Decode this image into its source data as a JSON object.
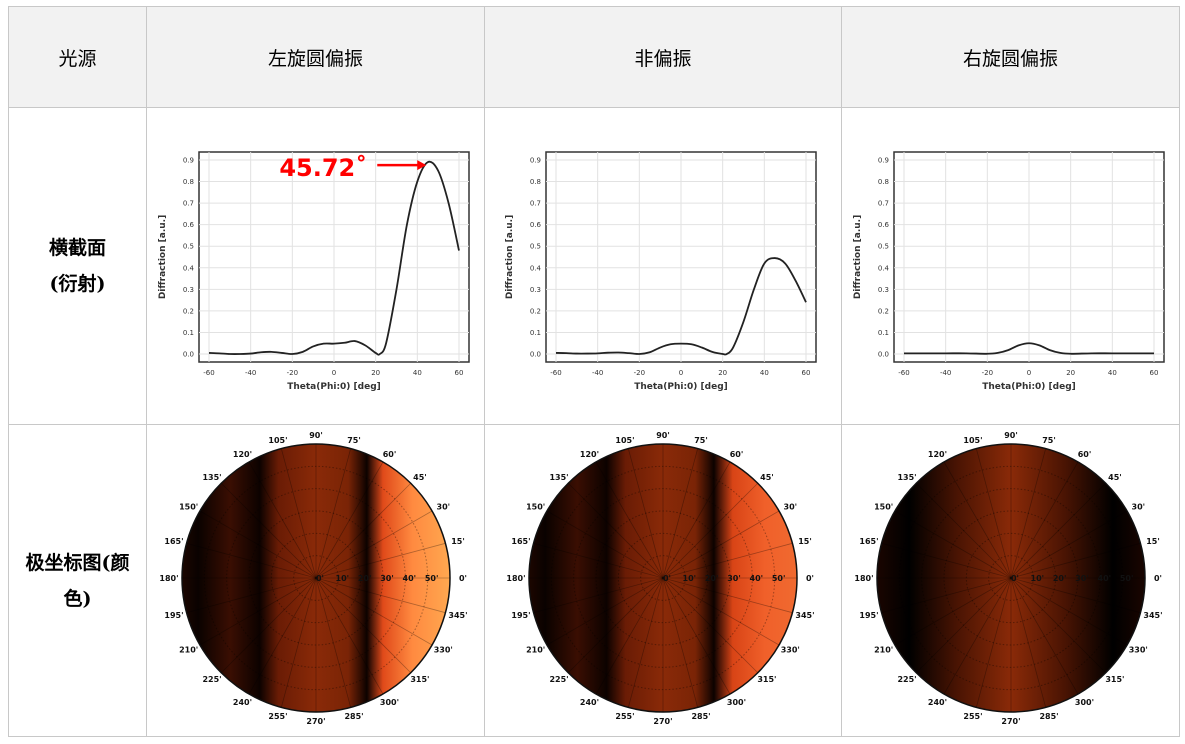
{
  "table": {
    "header": [
      "光源",
      "左旋圆偏振",
      "非偏振",
      "右旋圆偏振"
    ],
    "row_labels": {
      "profile_line1": "横截面",
      "profile_line2": "(衍射)",
      "polar_line1": "极坐标图(颜",
      "polar_line2": "色)"
    }
  },
  "chart_data": [
    {
      "type": "line",
      "column": "左旋圆偏振",
      "xlabel": "Theta(Phi:0) [deg]",
      "ylabel": "Diffraction [a.u.]",
      "xlim": [
        -60,
        60
      ],
      "ylim": [
        0,
        0.9
      ],
      "xticks": [
        -60,
        -40,
        -20,
        0,
        20,
        40,
        60
      ],
      "yticks": [
        0,
        0.1,
        0.2,
        0.3,
        0.4,
        0.5,
        0.6,
        0.7,
        0.8,
        0.9
      ],
      "grid": true,
      "annotation": {
        "text": "45.72˚",
        "x": 45.72,
        "y": 0.89,
        "color": "#ff0000"
      },
      "x": [
        -60,
        -55,
        -50,
        -45,
        -40,
        -35,
        -30,
        -25,
        -20,
        -15,
        -10,
        -5,
        0,
        5,
        10,
        15,
        20,
        22,
        25,
        30,
        35,
        40,
        45,
        50,
        55,
        60
      ],
      "y": [
        0.005,
        0.003,
        0,
        0,
        0.002,
        0.008,
        0.01,
        0.005,
        0,
        0.01,
        0.035,
        0.048,
        0.048,
        0.052,
        0.06,
        0.04,
        0.005,
        0,
        0.05,
        0.3,
        0.6,
        0.8,
        0.89,
        0.85,
        0.7,
        0.48
      ]
    },
    {
      "type": "line",
      "column": "非偏振",
      "xlabel": "Theta(Phi:0) [deg]",
      "ylabel": "Diffraction [a.u.]",
      "xlim": [
        -60,
        60
      ],
      "ylim": [
        0,
        0.9
      ],
      "xticks": [
        -60,
        -40,
        -20,
        0,
        20,
        40,
        60
      ],
      "yticks": [
        0,
        0.1,
        0.2,
        0.3,
        0.4,
        0.5,
        0.6,
        0.7,
        0.8,
        0.9
      ],
      "grid": true,
      "x": [
        -60,
        -55,
        -50,
        -45,
        -40,
        -35,
        -30,
        -25,
        -20,
        -15,
        -10,
        -5,
        0,
        5,
        10,
        15,
        20,
        22,
        25,
        30,
        35,
        40,
        45,
        50,
        55,
        60
      ],
      "y": [
        0.005,
        0.004,
        0.002,
        0.002,
        0.003,
        0.006,
        0.007,
        0.004,
        0,
        0.008,
        0.03,
        0.045,
        0.048,
        0.045,
        0.03,
        0.01,
        0,
        0,
        0.03,
        0.15,
        0.3,
        0.42,
        0.445,
        0.42,
        0.34,
        0.24
      ]
    },
    {
      "type": "line",
      "column": "右旋圆偏振",
      "xlabel": "Theta(Phi:0) [deg]",
      "ylabel": "Diffraction [a.u.]",
      "xlim": [
        -60,
        60
      ],
      "ylim": [
        0,
        0.9
      ],
      "xticks": [
        -60,
        -40,
        -20,
        0,
        20,
        40,
        60
      ],
      "yticks": [
        0,
        0.1,
        0.2,
        0.3,
        0.4,
        0.5,
        0.6,
        0.7,
        0.8,
        0.9
      ],
      "grid": true,
      "x": [
        -60,
        -50,
        -40,
        -30,
        -20,
        -15,
        -10,
        -5,
        0,
        5,
        10,
        15,
        20,
        30,
        40,
        50,
        60
      ],
      "y": [
        0.003,
        0.003,
        0.003,
        0.003,
        0.001,
        0.005,
        0.018,
        0.04,
        0.05,
        0.04,
        0.018,
        0.005,
        0.001,
        0.003,
        0.003,
        0.003,
        0.003
      ]
    },
    {
      "type": "heatmap",
      "subtype": "polar",
      "column": "左旋圆偏振",
      "angle_labels": [
        "0'",
        "15'",
        "30'",
        "45'",
        "60'",
        "75'",
        "90'",
        "105'",
        "120'",
        "135'",
        "150'",
        "165'",
        "180'",
        "195'",
        "210'",
        "225'",
        "240'",
        "255'",
        "270'",
        "285'",
        "300'",
        "315'",
        "330'",
        "345'"
      ],
      "radial_labels": [
        "0'",
        "10'",
        "20'",
        "30'",
        "40'",
        "50'"
      ],
      "band_colors": [
        [
          0,
          "#1c0600"
        ],
        [
          0.06,
          "#0a0200"
        ],
        [
          0.18,
          "#3a0e02"
        ],
        [
          0.29,
          "#0c0200"
        ],
        [
          0.36,
          "#6a1c05"
        ],
        [
          0.5,
          "#8a2a08"
        ],
        [
          0.62,
          "#7a2406"
        ],
        [
          0.69,
          "#0c0200"
        ],
        [
          0.75,
          "#e04a1a"
        ],
        [
          0.86,
          "#ff8a40"
        ],
        [
          1,
          "#ffa850"
        ]
      ]
    },
    {
      "type": "heatmap",
      "subtype": "polar",
      "column": "非偏振",
      "angle_labels": [
        "0'",
        "15'",
        "30'",
        "45'",
        "60'",
        "75'",
        "90'",
        "105'",
        "120'",
        "135'",
        "150'",
        "165'",
        "180'",
        "195'",
        "210'",
        "225'",
        "240'",
        "255'",
        "270'",
        "285'",
        "300'",
        "315'",
        "330'",
        "345'"
      ],
      "radial_labels": [
        "0'",
        "10'",
        "20'",
        "30'",
        "40'",
        "50'"
      ],
      "band_colors": [
        [
          0,
          "#1c0600"
        ],
        [
          0.06,
          "#0a0200"
        ],
        [
          0.18,
          "#3a0e02"
        ],
        [
          0.29,
          "#0c0200"
        ],
        [
          0.36,
          "#6a1c05"
        ],
        [
          0.5,
          "#8a2a08"
        ],
        [
          0.62,
          "#7a2406"
        ],
        [
          0.69,
          "#0c0200"
        ],
        [
          0.76,
          "#d84416"
        ],
        [
          0.88,
          "#f0602a"
        ],
        [
          1,
          "#f06a30"
        ]
      ]
    },
    {
      "type": "heatmap",
      "subtype": "polar",
      "column": "右旋圆偏振",
      "angle_labels": [
        "0'",
        "15'",
        "30'",
        "45'",
        "60'",
        "75'",
        "90'",
        "105'",
        "120'",
        "135'",
        "150'",
        "165'",
        "180'",
        "195'",
        "210'",
        "225'",
        "240'",
        "255'",
        "270'",
        "285'",
        "300'",
        "315'",
        "330'",
        "345'"
      ],
      "radial_labels": [
        "0'",
        "10'",
        "20'",
        "30'",
        "40'",
        "50'"
      ],
      "band_colors": [
        [
          0,
          "#1a0500"
        ],
        [
          0.12,
          "#000000"
        ],
        [
          0.3,
          "#4a1403"
        ],
        [
          0.5,
          "#8a2a08"
        ],
        [
          0.7,
          "#4a1403"
        ],
        [
          0.88,
          "#000000"
        ],
        [
          1,
          "#1a0500"
        ]
      ]
    }
  ]
}
